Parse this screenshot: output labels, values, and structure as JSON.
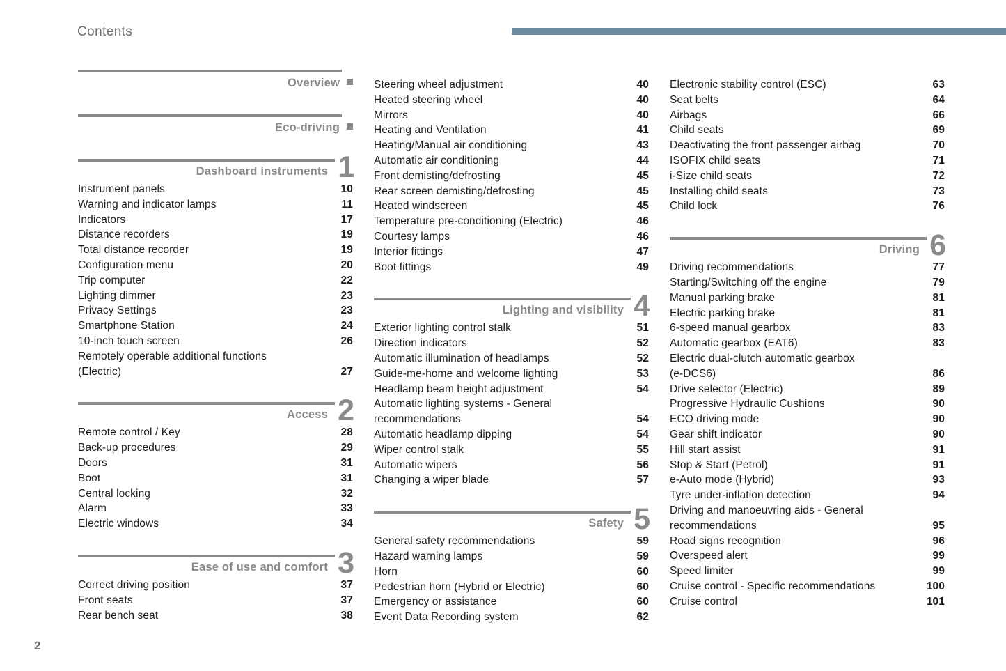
{
  "header": {
    "title": "Contents"
  },
  "footer": {
    "page_number": "2"
  },
  "colors": {
    "top_bar": "#6d8b9e",
    "section_gray": "#8a8a8a",
    "text": "#1d1d1d",
    "muted": "#6e6e6e"
  },
  "columns": [
    [
      {
        "title": "Overview",
        "bullet": true
      },
      {
        "title": "Eco-driving",
        "bullet": true
      },
      {
        "title": "Dashboard instruments",
        "number": "1",
        "items": [
          [
            "Instrument panels",
            "10"
          ],
          [
            "Warning and indicator lamps",
            "11"
          ],
          [
            "Indicators",
            "17"
          ],
          [
            "Distance recorders",
            "19"
          ],
          [
            "Total distance recorder",
            "19"
          ],
          [
            "Configuration menu",
            "20"
          ],
          [
            "Trip computer",
            "22"
          ],
          [
            "Lighting dimmer",
            "23"
          ],
          [
            "Privacy Settings",
            "23"
          ],
          [
            "Smartphone Station",
            "24"
          ],
          [
            "10-inch touch screen",
            "26"
          ],
          [
            "Remotely operable additional functions",
            ""
          ],
          [
            "(Electric)",
            "27"
          ]
        ]
      },
      {
        "title": "Access",
        "number": "2",
        "items": [
          [
            "Remote control / Key",
            "28"
          ],
          [
            "Back-up procedures",
            "29"
          ],
          [
            "Doors",
            "31"
          ],
          [
            "Boot",
            "31"
          ],
          [
            "Central locking",
            "32"
          ],
          [
            "Alarm",
            "33"
          ],
          [
            "Electric windows",
            "34"
          ]
        ]
      },
      {
        "title": "Ease of use and comfort",
        "number": "3",
        "items": [
          [
            "Correct driving position",
            "37"
          ],
          [
            "Front seats",
            "37"
          ],
          [
            "Rear bench seat",
            "38"
          ]
        ]
      }
    ],
    [
      {
        "items": [
          [
            "Steering wheel adjustment",
            "40"
          ],
          [
            "Heated steering wheel",
            "40"
          ],
          [
            "Mirrors",
            "40"
          ],
          [
            "Heating and Ventilation",
            "41"
          ],
          [
            "Heating/Manual air conditioning",
            "43"
          ],
          [
            "Automatic air conditioning",
            "44"
          ],
          [
            "Front demisting/defrosting",
            "45"
          ],
          [
            "Rear screen demisting/defrosting",
            "45"
          ],
          [
            "Heated windscreen",
            "45"
          ],
          [
            "Temperature pre-conditioning (Electric)",
            "46"
          ],
          [
            "Courtesy lamps",
            "46"
          ],
          [
            "Interior fittings",
            "47"
          ],
          [
            "Boot fittings",
            "49"
          ]
        ]
      },
      {
        "title": "Lighting and visibility",
        "number": "4",
        "items": [
          [
            "Exterior lighting control stalk",
            "51"
          ],
          [
            "Direction indicators",
            "52"
          ],
          [
            "Automatic illumination of headlamps",
            "52"
          ],
          [
            "Guide-me-home and welcome lighting",
            "53"
          ],
          [
            "Headlamp beam height adjustment",
            "54"
          ],
          [
            "Automatic lighting systems - General",
            ""
          ],
          [
            "recommendations",
            "54"
          ],
          [
            "Automatic headlamp dipping",
            "54"
          ],
          [
            "Wiper control stalk",
            "55"
          ],
          [
            "Automatic wipers",
            "56"
          ],
          [
            "Changing a wiper blade",
            "57"
          ]
        ]
      },
      {
        "title": "Safety",
        "number": "5",
        "items": [
          [
            "General safety recommendations",
            "59"
          ],
          [
            "Hazard warning lamps",
            "59"
          ],
          [
            "Horn",
            "60"
          ],
          [
            "Pedestrian horn (Hybrid or Electric)",
            "60"
          ],
          [
            "Emergency or assistance",
            "60"
          ],
          [
            "Event Data Recording system",
            "62"
          ]
        ]
      }
    ],
    [
      {
        "items": [
          [
            "Electronic stability control (ESC)",
            "63"
          ],
          [
            "Seat belts",
            "64"
          ],
          [
            "Airbags",
            "66"
          ],
          [
            "Child seats",
            "69"
          ],
          [
            "Deactivating the front passenger airbag",
            "70"
          ],
          [
            "ISOFIX child seats",
            "71"
          ],
          [
            "i-Size child seats",
            "72"
          ],
          [
            "Installing child seats",
            "73"
          ],
          [
            "Child lock",
            "76"
          ]
        ]
      },
      {
        "title": "Driving",
        "number": "6",
        "items": [
          [
            "Driving recommendations",
            "77"
          ],
          [
            "Starting/Switching off the engine",
            "79"
          ],
          [
            "Manual parking brake",
            "81"
          ],
          [
            "Electric parking brake",
            "81"
          ],
          [
            "6-speed manual gearbox",
            "83"
          ],
          [
            "Automatic gearbox (EAT6)",
            "83"
          ],
          [
            "Electric dual-clutch automatic gearbox",
            ""
          ],
          [
            "(e-DCS6)",
            "86"
          ],
          [
            "Drive selector (Electric)",
            "89"
          ],
          [
            "Progressive Hydraulic Cushions",
            "90"
          ],
          [
            "ECO driving mode",
            "90"
          ],
          [
            "Gear shift indicator",
            "90"
          ],
          [
            "Hill start assist",
            "91"
          ],
          [
            "Stop & Start (Petrol)",
            "91"
          ],
          [
            "e-Auto mode (Hybrid)",
            "93"
          ],
          [
            "Tyre under-inflation detection",
            "94"
          ],
          [
            "Driving and manoeuvring aids - General",
            ""
          ],
          [
            "recommendations",
            "95"
          ],
          [
            "Road signs recognition",
            "96"
          ],
          [
            "Overspeed alert",
            "99"
          ],
          [
            "Speed limiter",
            "99"
          ],
          [
            "Cruise control - Specific recommendations",
            "100"
          ],
          [
            "Cruise control",
            "101"
          ]
        ]
      }
    ]
  ]
}
